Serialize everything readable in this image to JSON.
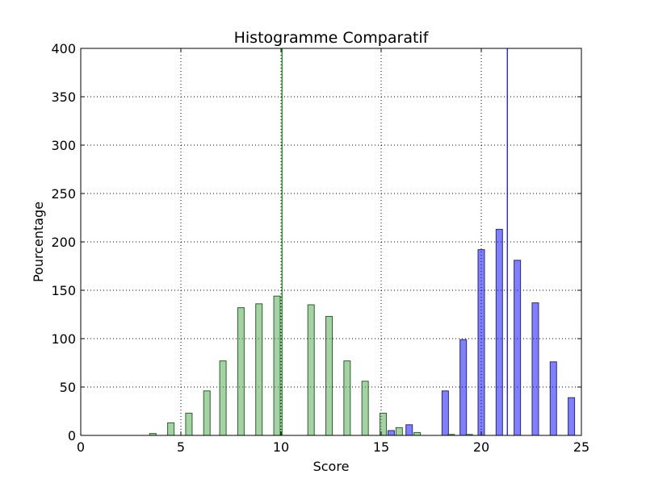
{
  "chart_data": {
    "type": "bar",
    "title": "Histogramme Comparatif",
    "xlabel": "Score",
    "ylabel": "Pourcentage",
    "xlim": [
      0,
      25
    ],
    "ylim": [
      0,
      400
    ],
    "xticks": [
      0,
      5,
      10,
      15,
      20,
      25
    ],
    "yticks": [
      0,
      50,
      100,
      150,
      200,
      250,
      300,
      350,
      400
    ],
    "grid": true,
    "legend": "none",
    "series": [
      {
        "color": "#4CA64C",
        "edge": "#2E5E2E",
        "bins": [
          {
            "x": 3.6,
            "value": 2
          },
          {
            "x": 4.5,
            "value": 13
          },
          {
            "x": 5.4,
            "value": 23
          },
          {
            "x": 6.3,
            "value": 46
          },
          {
            "x": 7.1,
            "value": 77
          },
          {
            "x": 8.0,
            "value": 132
          },
          {
            "x": 8.9,
            "value": 136
          },
          {
            "x": 9.8,
            "value": 144
          },
          {
            "x": 11.5,
            "value": 135
          },
          {
            "x": 12.4,
            "value": 123
          },
          {
            "x": 13.3,
            "value": 77
          },
          {
            "x": 14.2,
            "value": 56
          },
          {
            "x": 15.1,
            "value": 23
          },
          {
            "x": 15.9,
            "value": 8
          },
          {
            "x": 16.8,
            "value": 3
          },
          {
            "x": 18.5,
            "value": 1
          },
          {
            "x": 19.4,
            "value": 1
          }
        ],
        "mean_line": 10.05
      },
      {
        "color": "#0000FF",
        "edge": "#2B2B6B",
        "bins": [
          {
            "x": 15.5,
            "value": 5
          },
          {
            "x": 16.4,
            "value": 11
          },
          {
            "x": 18.2,
            "value": 46
          },
          {
            "x": 19.1,
            "value": 99
          },
          {
            "x": 20.0,
            "value": 192
          },
          {
            "x": 20.9,
            "value": 213
          },
          {
            "x": 21.8,
            "value": 181
          },
          {
            "x": 22.7,
            "value": 137
          },
          {
            "x": 23.6,
            "value": 76
          },
          {
            "x": 24.5,
            "value": 39
          }
        ],
        "mean_line": 21.3
      }
    ]
  }
}
